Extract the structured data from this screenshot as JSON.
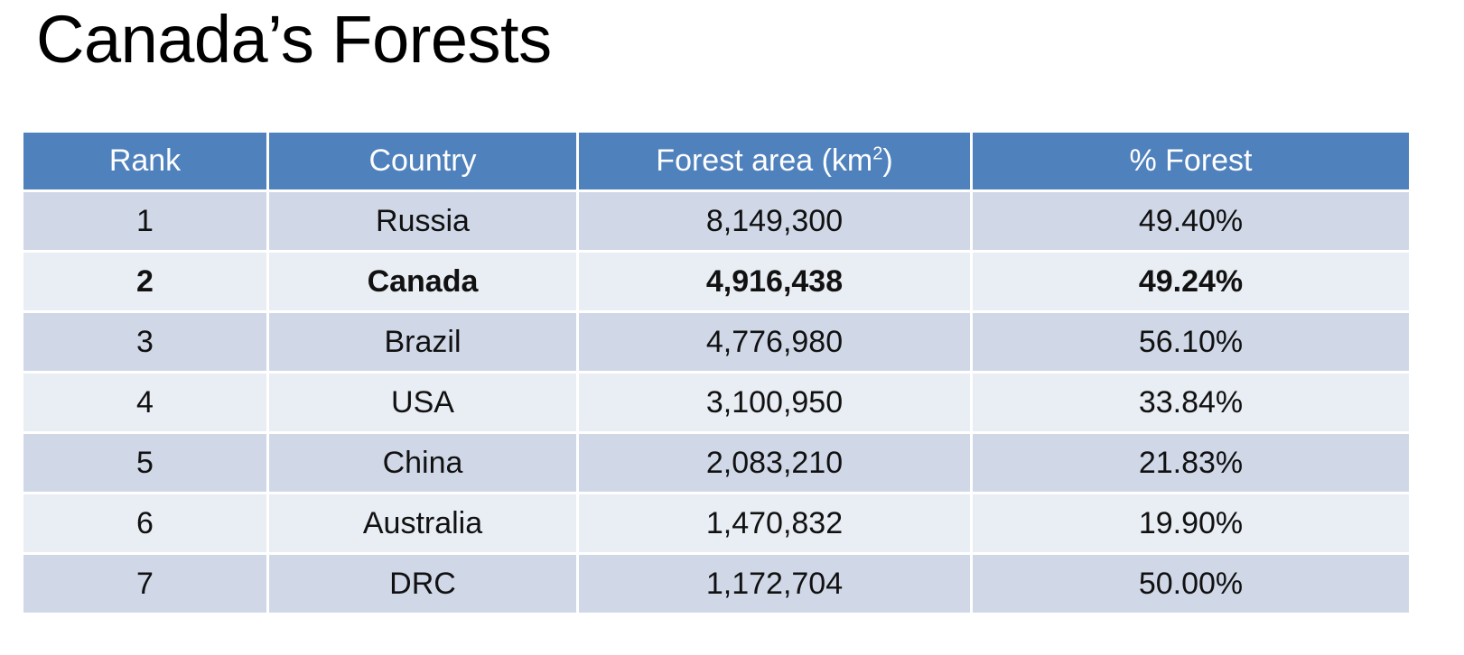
{
  "title": "Canada’s Forests",
  "table": {
    "headers": {
      "rank": "Rank",
      "country": "Country",
      "area_prefix": "Forest area (km",
      "area_sup": "2",
      "area_suffix": ")",
      "percent": "% Forest"
    },
    "rows": [
      {
        "rank": "1",
        "country": "Russia",
        "area": "8,149,300",
        "percent": "49.40%"
      },
      {
        "rank": "2",
        "country": "Canada",
        "area": "4,916,438",
        "percent": "49.24%"
      },
      {
        "rank": "3",
        "country": "Brazil",
        "area": "4,776,980",
        "percent": "56.10%"
      },
      {
        "rank": "4",
        "country": "USA",
        "area": "3,100,950",
        "percent": "33.84%"
      },
      {
        "rank": "5",
        "country": "China",
        "area": "2,083,210",
        "percent": "21.83%"
      },
      {
        "rank": "6",
        "country": "Australia",
        "area": "1,470,832",
        "percent": "19.90%"
      },
      {
        "rank": "7",
        "country": "DRC",
        "area": "1,172,704",
        "percent": "50.00%"
      }
    ]
  },
  "colors": {
    "header_bg": "#4f81bd",
    "row_odd_bg": "#d0d8e8",
    "row_even_bg": "#e9edf4"
  }
}
